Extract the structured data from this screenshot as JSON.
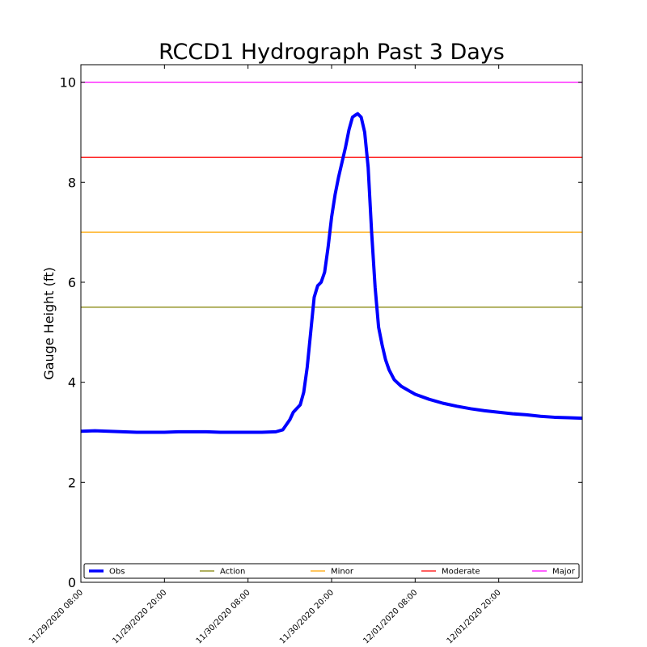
{
  "chart_data": {
    "type": "line",
    "title": "RCCD1 Hydrograph Past 3 Days",
    "xlabel": "",
    "ylabel": "Gauge Height (ft)",
    "ylim": [
      0,
      10.35
    ],
    "xlim": [
      "11/29/2020 08:00",
      "12/02/2020 08:00"
    ],
    "x_tick_labels": [
      "11/29/2020 08:00",
      "11/29/2020 20:00",
      "11/30/2020 08:00",
      "11/30/2020 20:00",
      "12/01/2020 08:00",
      "12/01/2020 20:00"
    ],
    "y_tick_labels": [
      "0",
      "2",
      "4",
      "6",
      "8",
      "10"
    ],
    "grid": false,
    "legend_position": "bottom",
    "series": [
      {
        "name": "Obs",
        "color": "#0000ff",
        "points": [
          [
            "11/29/2020 08:00",
            3.02
          ],
          [
            "11/29/2020 10:00",
            3.03
          ],
          [
            "11/29/2020 12:00",
            3.02
          ],
          [
            "11/29/2020 14:00",
            3.01
          ],
          [
            "11/29/2020 16:00",
            3.0
          ],
          [
            "11/29/2020 18:00",
            3.0
          ],
          [
            "11/29/2020 20:00",
            3.0
          ],
          [
            "11/29/2020 22:00",
            3.01
          ],
          [
            "11/30/2020 00:00",
            3.01
          ],
          [
            "11/30/2020 02:00",
            3.01
          ],
          [
            "11/30/2020 04:00",
            3.0
          ],
          [
            "11/30/2020 06:00",
            3.0
          ],
          [
            "11/30/2020 08:00",
            3.0
          ],
          [
            "11/30/2020 10:00",
            3.0
          ],
          [
            "11/30/2020 12:00",
            3.01
          ],
          [
            "11/30/2020 13:00",
            3.05
          ],
          [
            "11/30/2020 14:00",
            3.25
          ],
          [
            "11/30/2020 14:30",
            3.4
          ],
          [
            "11/30/2020 15:30",
            3.55
          ],
          [
            "11/30/2020 16:00",
            3.8
          ],
          [
            "11/30/2020 16:30",
            4.3
          ],
          [
            "11/30/2020 17:00",
            5.0
          ],
          [
            "11/30/2020 17:30",
            5.7
          ],
          [
            "11/30/2020 18:00",
            5.93
          ],
          [
            "11/30/2020 18:30",
            6.0
          ],
          [
            "11/30/2020 19:00",
            6.2
          ],
          [
            "11/30/2020 19:30",
            6.7
          ],
          [
            "11/30/2020 20:00",
            7.3
          ],
          [
            "11/30/2020 20:30",
            7.75
          ],
          [
            "11/30/2020 21:00",
            8.1
          ],
          [
            "11/30/2020 21:30",
            8.4
          ],
          [
            "11/30/2020 22:00",
            8.7
          ],
          [
            "11/30/2020 22:30",
            9.05
          ],
          [
            "11/30/2020 23:00",
            9.3
          ],
          [
            "11/30/2020 23:30",
            9.35
          ],
          [
            "11/30/2020 23:45",
            9.37
          ],
          [
            "12/01/2020 00:15",
            9.3
          ],
          [
            "12/01/2020 00:45",
            9.0
          ],
          [
            "12/01/2020 01:15",
            8.3
          ],
          [
            "12/01/2020 01:45",
            7.0
          ],
          [
            "12/01/2020 02:15",
            5.9
          ],
          [
            "12/01/2020 02:45",
            5.1
          ],
          [
            "12/01/2020 03:15",
            4.75
          ],
          [
            "12/01/2020 03:45",
            4.45
          ],
          [
            "12/01/2020 04:15",
            4.25
          ],
          [
            "12/01/2020 05:00",
            4.05
          ],
          [
            "12/01/2020 06:00",
            3.92
          ],
          [
            "12/01/2020 08:00",
            3.76
          ],
          [
            "12/01/2020 10:00",
            3.66
          ],
          [
            "12/01/2020 12:00",
            3.58
          ],
          [
            "12/01/2020 14:00",
            3.52
          ],
          [
            "12/01/2020 16:00",
            3.47
          ],
          [
            "12/01/2020 18:00",
            3.43
          ],
          [
            "12/01/2020 20:00",
            3.4
          ],
          [
            "12/01/2020 22:00",
            3.37
          ],
          [
            "12/02/2020 00:00",
            3.35
          ],
          [
            "12/02/2020 02:00",
            3.32
          ],
          [
            "12/02/2020 04:00",
            3.3
          ],
          [
            "12/02/2020 06:00",
            3.29
          ],
          [
            "12/02/2020 08:00",
            3.28
          ]
        ]
      }
    ],
    "thresholds": [
      {
        "name": "Action",
        "value": 5.5,
        "color": "#808000"
      },
      {
        "name": "Minor",
        "value": 7.0,
        "color": "#ffa500"
      },
      {
        "name": "Moderate",
        "value": 8.5,
        "color": "#ff0000"
      },
      {
        "name": "Major",
        "value": 10.0,
        "color": "#ff00ff"
      }
    ]
  }
}
